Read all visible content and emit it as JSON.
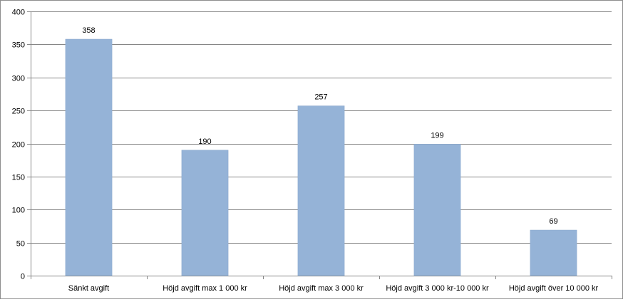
{
  "chart_data": {
    "type": "bar",
    "categories": [
      "Sänkt avgift",
      "Höjd avgift max 1 000 kr",
      "Höjd avgift max 3 000 kr",
      "Höjd avgift 3 000 kr-10 000 kr",
      "Höjd avgift över 10 000 kr"
    ],
    "values": [
      358,
      190,
      257,
      199,
      69
    ],
    "data_labels": [
      "358",
      "190",
      "257",
      "199",
      "69"
    ],
    "ylim": [
      0,
      400
    ],
    "yticks": [
      0,
      50,
      100,
      150,
      200,
      250,
      300,
      350,
      400
    ],
    "ytick_labels": [
      "0",
      "50",
      "100",
      "150",
      "200",
      "250",
      "300",
      "350",
      "400"
    ],
    "title": "",
    "xlabel": "",
    "ylabel": "",
    "grid": true,
    "legend": "none",
    "bar_color": "#95b3d7",
    "bar_edge_color": "#8aa8cc",
    "gridline_color": "#868686"
  }
}
